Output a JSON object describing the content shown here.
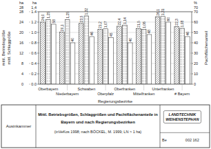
{
  "chart_data": {
    "type": "bar",
    "title": [
      "Mittl. Betriebsgrößen, Schlaggrößen und Pachtflächenanteile in",
      "Bayern und nach Regierungsbezirken"
    ],
    "subtitle": "(inVeKos 1998; nach BÖCKEL, M. 1999; LN > 1 ha)",
    "xlabel": "Regierungsbezirke",
    "ylabel": "mittl. Betriebsgröße",
    "y2label": "Pachtflächenanteil",
    "y3label": "mittl. Schlaggröße",
    "categories": [
      "Oberbayern",
      "Niederbayern",
      "Schwaben",
      "Oberpfalz",
      "Oberfranken",
      "Mittelfranken",
      "Unterfranken",
      "# Bayern"
    ],
    "series": [
      {
        "color": "#ffffff",
        "values": [
          24.0,
          20.1,
          23.5,
          21.2,
          22.4,
          21.5,
          26.1,
          22.3
        ],
        "value_labels": [
          "24,0",
          "20,1",
          "23,5",
          "21,2",
          "22,4",
          "21,5",
          "26,1",
          "22,3"
        ]
      },
      {
        "color": "#ffffff",
        "axis": "y3",
        "values": [
          1.25,
          1.25,
          1.32,
          1.07,
          1.14,
          1.06,
          1.31,
          1.08
        ],
        "value_labels": [
          "1,25",
          "1,25",
          "1,32",
          "1,07",
          "1,14",
          "1,06",
          "1,31",
          "1,08"
        ]
      },
      {
        "color": "#ffffff",
        "axis": "y2",
        "values": [
          58,
          40,
          46,
          45,
          40,
          48,
          60,
          46
        ]
      }
    ],
    "ylim": [
      0,
      28
    ],
    "yticks": [
      0,
      4,
      8,
      12,
      16,
      20,
      24,
      28
    ],
    "y2lim": [
      0,
      70
    ],
    "y2ticks": [
      0,
      10,
      20,
      30,
      40,
      50,
      60,
      70
    ],
    "y3lim": [
      0,
      1.4
    ],
    "y3ticks": [
      {
        "value": 0.0,
        "label": "0.0"
      },
      0.2,
      0.4,
      0.6,
      0.8,
      {
        "value": 1.0,
        "label": "1.0"
      },
      1.2,
      1.4
    ],
    "grid": true,
    "data_labels": true,
    "annotations": [
      "28",
      "ha",
      "1,4",
      "ha",
      "70",
      "%",
      "Ausinkammer",
      "LANDTECHNIK\nWEIHENSTEPHAN",
      "Be",
      "002 162"
    ]
  }
}
